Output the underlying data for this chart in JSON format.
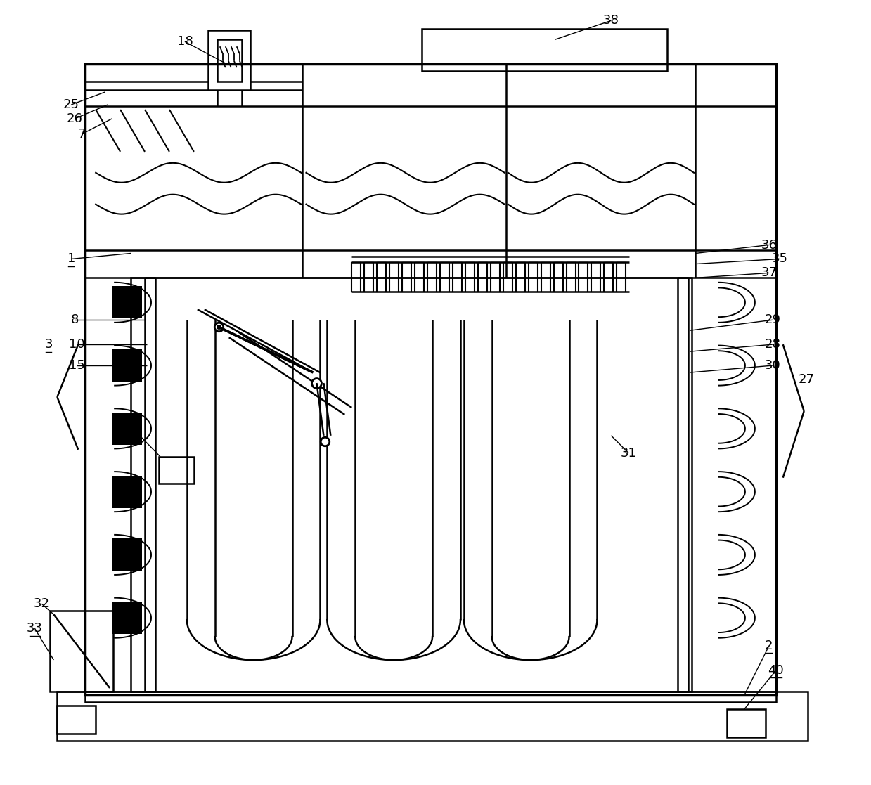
{
  "bg_color": "#ffffff",
  "lc": "#000000",
  "lw": 1.8,
  "tlw": 2.5,
  "figsize": [
    12.39,
    11.17
  ],
  "dpi": 100
}
